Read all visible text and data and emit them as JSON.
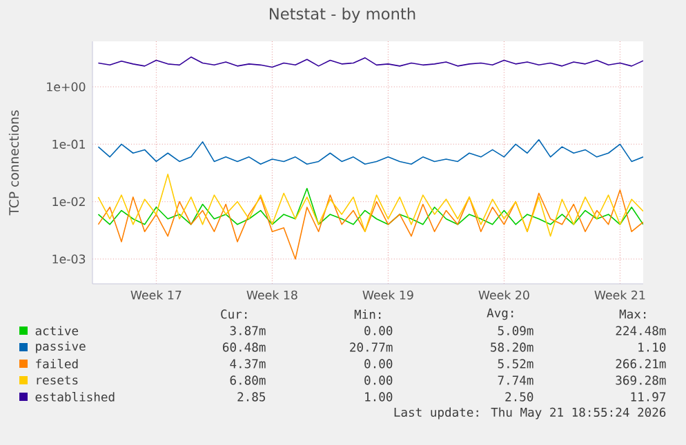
{
  "chart_data": {
    "type": "line",
    "title": "Netstat - by month",
    "ylabel": "TCP connections",
    "categories": [
      null,
      null,
      null,
      null,
      null,
      "Week 17",
      null,
      null,
      null,
      null,
      null,
      null,
      null,
      null,
      null,
      "Week 18",
      null,
      null,
      null,
      null,
      null,
      null,
      null,
      null,
      null,
      "Week 19",
      null,
      null,
      null,
      null,
      null,
      null,
      null,
      null,
      null,
      "Week 20",
      null,
      null,
      null,
      null,
      null,
      null,
      null,
      null,
      null,
      "Week 21",
      null,
      null
    ],
    "series": [
      {
        "name": "active",
        "color": "#00cc00",
        "values": [
          0.006,
          0.004,
          0.007,
          0.005,
          0.004,
          0.008,
          0.005,
          0.006,
          0.004,
          0.009,
          0.005,
          0.006,
          0.004,
          0.005,
          0.007,
          0.004,
          0.006,
          0.005,
          0.017,
          0.004,
          0.006,
          0.005,
          0.004,
          0.007,
          0.005,
          0.004,
          0.006,
          0.005,
          0.004,
          0.008,
          0.005,
          0.004,
          0.006,
          0.005,
          0.004,
          0.007,
          0.004,
          0.006,
          0.005,
          0.004,
          0.006,
          0.004,
          0.007,
          0.005,
          0.006,
          0.004,
          0.008,
          0.004
        ]
      },
      {
        "name": "passive",
        "color": "#0066b3",
        "values": [
          0.09,
          0.06,
          0.1,
          0.07,
          0.08,
          0.05,
          0.07,
          0.05,
          0.06,
          0.11,
          0.05,
          0.06,
          0.05,
          0.06,
          0.045,
          0.055,
          0.05,
          0.06,
          0.045,
          0.05,
          0.07,
          0.05,
          0.06,
          0.045,
          0.05,
          0.06,
          0.05,
          0.045,
          0.06,
          0.05,
          0.055,
          0.05,
          0.07,
          0.06,
          0.08,
          0.06,
          0.1,
          0.07,
          0.12,
          0.06,
          0.09,
          0.07,
          0.08,
          0.06,
          0.07,
          0.1,
          0.05,
          0.06
        ]
      },
      {
        "name": "failed",
        "color": "#ff8000",
        "values": [
          0.004,
          0.008,
          0.002,
          0.012,
          0.003,
          0.006,
          0.0025,
          0.01,
          0.004,
          0.007,
          0.003,
          0.009,
          0.002,
          0.006,
          0.012,
          0.003,
          0.0035,
          0.001,
          0.008,
          0.003,
          0.013,
          0.004,
          0.007,
          0.003,
          0.01,
          0.004,
          0.006,
          0.0025,
          0.009,
          0.003,
          0.007,
          0.004,
          0.012,
          0.003,
          0.008,
          0.004,
          0.01,
          0.003,
          0.014,
          0.005,
          0.004,
          0.009,
          0.003,
          0.007,
          0.004,
          0.016,
          0.003,
          0.0044
        ]
      },
      {
        "name": "resets",
        "color": "#ffcc00",
        "values": [
          0.012,
          0.005,
          0.013,
          0.004,
          0.011,
          0.006,
          0.03,
          0.005,
          0.012,
          0.004,
          0.013,
          0.006,
          0.01,
          0.005,
          0.013,
          0.004,
          0.014,
          0.005,
          0.012,
          0.004,
          0.011,
          0.006,
          0.012,
          0.003,
          0.013,
          0.005,
          0.012,
          0.004,
          0.013,
          0.006,
          0.011,
          0.005,
          0.012,
          0.004,
          0.011,
          0.005,
          0.01,
          0.003,
          0.012,
          0.0025,
          0.011,
          0.004,
          0.012,
          0.005,
          0.013,
          0.004,
          0.011,
          0.0068
        ]
      },
      {
        "name": "established",
        "color": "#330099",
        "values": [
          2.6,
          2.4,
          2.8,
          2.5,
          2.3,
          2.9,
          2.5,
          2.4,
          3.3,
          2.6,
          2.4,
          2.7,
          2.3,
          2.5,
          2.4,
          2.2,
          2.6,
          2.4,
          3.0,
          2.3,
          2.9,
          2.5,
          2.6,
          3.2,
          2.4,
          2.5,
          2.3,
          2.6,
          2.4,
          2.5,
          2.7,
          2.3,
          2.5,
          2.6,
          2.4,
          2.9,
          2.5,
          2.7,
          2.4,
          2.6,
          2.3,
          2.7,
          2.5,
          2.9,
          2.4,
          2.6,
          2.3,
          2.85
        ]
      }
    ],
    "ylim": [
      0.00037,
      6.2
    ],
    "yticks": [
      {
        "value": 0.001,
        "label": "1e-03"
      },
      {
        "value": 0.01,
        "label": "1e-02"
      },
      {
        "value": 0.1,
        "label": "1e-01"
      },
      {
        "value": 1,
        "label": "1e+00"
      }
    ],
    "log": "y",
    "grid": true,
    "legend": "bottom",
    "marker": "none",
    "line_style": "solid",
    "annotations": [
      "Cur:",
      "Min:",
      "Avg:",
      "Max:",
      "3.87m",
      "0.00",
      "5.09m",
      "224.48m",
      "60.48m",
      "20.77m",
      "58.20m",
      "1.10",
      "4.37m",
      "0.00",
      "5.52m",
      "266.21m",
      "6.80m",
      "0.00",
      "7.74m",
      "369.28m",
      "2.85",
      "1.00",
      "2.50",
      "11.97",
      "Last update: Thu May 21 18:55:24 2026"
    ]
  }
}
